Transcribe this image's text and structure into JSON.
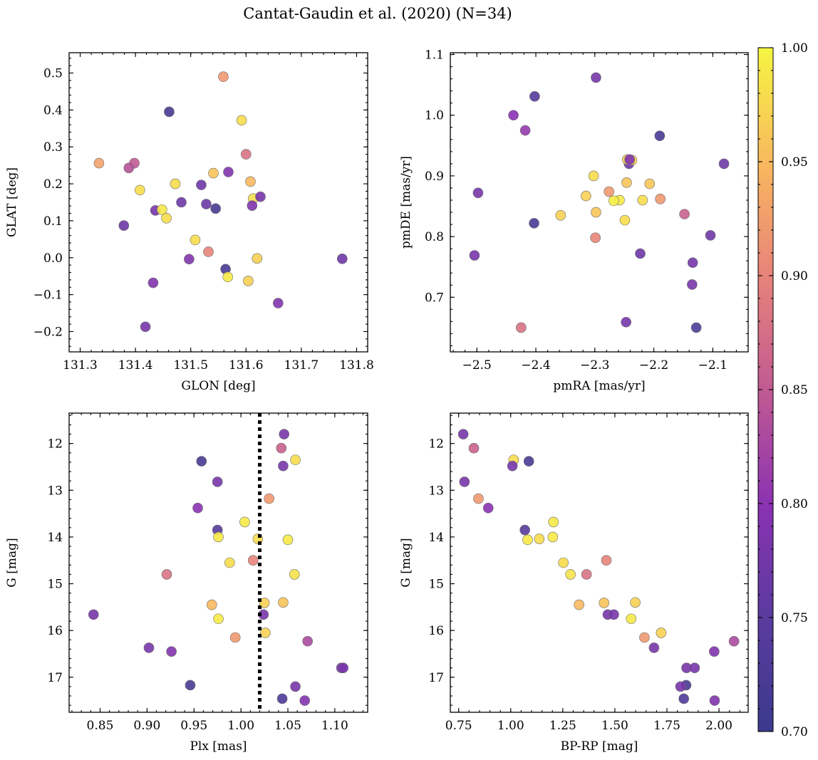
{
  "title": "Cantat-Gaudin et al. (2020) (N=34)",
  "colorbar": {
    "min": 0.7,
    "max": 1.0,
    "ticks": [
      "0.70",
      "0.75",
      "0.80",
      "0.85",
      "0.90",
      "0.95",
      "1.00"
    ],
    "colormap": "plasma"
  },
  "chart_data": [
    {
      "type": "scatter",
      "xlabel": "GLON [deg]",
      "ylabel": "GLAT [deg]",
      "xlim": [
        131.28,
        131.82
      ],
      "ylim": [
        -0.255,
        0.555
      ],
      "xticks": [
        "131.3",
        "131.4",
        "131.5",
        "131.6",
        "131.7",
        "131.8"
      ],
      "yticks": [
        "−0.2",
        "−0.1",
        "0.0",
        "0.1",
        "0.2",
        "0.3",
        "0.4",
        "0.5"
      ],
      "x": [
        131.559,
        131.461,
        131.592,
        131.6,
        131.334,
        131.398,
        131.388,
        131.568,
        131.541,
        131.608,
        131.472,
        131.408,
        131.519,
        131.613,
        131.626,
        131.483,
        131.528,
        131.436,
        131.448,
        131.545,
        131.379,
        131.456,
        131.508,
        131.532,
        131.497,
        131.62,
        131.774,
        131.563,
        131.567,
        131.604,
        131.432,
        131.658,
        131.418,
        131.611
      ],
      "y": [
        0.49,
        0.395,
        0.372,
        0.28,
        0.256,
        0.256,
        0.243,
        0.232,
        0.229,
        0.206,
        0.2,
        0.183,
        0.197,
        0.16,
        0.165,
        0.15,
        0.145,
        0.128,
        0.13,
        0.133,
        0.087,
        0.107,
        0.048,
        0.016,
        -0.004,
        -0.002,
        -0.003,
        -0.031,
        -0.052,
        -0.063,
        -0.068,
        -0.123,
        -0.187,
        0.141
      ],
      "c": [
        0.92,
        0.72,
        0.98,
        0.88,
        0.93,
        0.85,
        0.84,
        0.79,
        0.96,
        0.95,
        0.98,
        0.98,
        0.77,
        0.98,
        0.78,
        0.77,
        0.77,
        0.78,
        0.99,
        0.72,
        0.77,
        0.98,
        0.98,
        0.9,
        0.79,
        0.97,
        0.77,
        0.72,
        0.99,
        0.97,
        0.79,
        0.79,
        0.78,
        0.79
      ]
    },
    {
      "type": "scatter",
      "xlabel": "pmRA [mas/yr]",
      "ylabel": "pmDE [mas/yr]",
      "xlim": [
        -2.545,
        -2.04
      ],
      "ylim": [
        0.61,
        1.103
      ],
      "xticks": [
        "−2.5",
        "−2.4",
        "−2.3",
        "−2.2",
        "−2.1"
      ],
      "yticks": [
        "0.7",
        "0.8",
        "0.9",
        "1.0",
        "1.1"
      ],
      "x": [
        -2.298,
        -2.402,
        -2.438,
        -2.418,
        -2.19,
        -2.081,
        -2.498,
        -2.242,
        -2.245,
        -2.237,
        -2.302,
        -2.207,
        -2.276,
        -2.246,
        -2.315,
        -2.219,
        -2.258,
        -2.189,
        -2.268,
        -2.298,
        -2.358,
        -2.148,
        -2.249,
        -2.403,
        -2.104,
        -2.299,
        -2.223,
        -2.504,
        -2.134,
        -2.135,
        -2.247,
        -2.425,
        -2.128,
        -2.241
      ],
      "y": [
        1.062,
        1.031,
        1.0,
        0.975,
        0.966,
        0.92,
        0.872,
        0.92,
        0.927,
        0.926,
        0.9,
        0.887,
        0.874,
        0.889,
        0.867,
        0.86,
        0.86,
        0.862,
        0.859,
        0.84,
        0.835,
        0.837,
        0.827,
        0.822,
        0.802,
        0.798,
        0.772,
        0.769,
        0.757,
        0.721,
        0.659,
        0.65,
        0.65,
        0.927
      ],
      "c": [
        0.78,
        0.74,
        0.8,
        0.81,
        0.72,
        0.77,
        0.78,
        0.77,
        0.97,
        0.97,
        0.98,
        0.96,
        0.92,
        0.96,
        0.97,
        0.98,
        0.99,
        0.92,
        0.995,
        0.96,
        0.97,
        0.86,
        0.98,
        0.72,
        0.77,
        0.9,
        0.77,
        0.78,
        0.78,
        0.78,
        0.78,
        0.88,
        0.73,
        0.79
      ]
    },
    {
      "type": "scatter",
      "xlabel": "Plx [mas]",
      "ylabel": "G [mag]",
      "xlim": [
        0.817,
        1.135
      ],
      "ylim": [
        17.75,
        11.35
      ],
      "ylim_inverted": true,
      "vline": 1.02,
      "xticks": [
        "0.85",
        "0.90",
        "0.95",
        "1.00",
        "1.05",
        "1.10"
      ],
      "yticks": [
        "12",
        "13",
        "14",
        "15",
        "16",
        "17"
      ],
      "x": [
        1.046,
        1.043,
        1.058,
        0.958,
        1.045,
        0.975,
        1.03,
        0.954,
        1.004,
        0.975,
        0.976,
        1.018,
        1.05,
        1.013,
        0.988,
        0.921,
        1.057,
        1.025,
        1.045,
        0.969,
        1.024,
        0.976,
        1.026,
        0.843,
        0.994,
        1.071,
        0.902,
        0.926,
        1.107,
        1.109,
        0.946,
        1.058,
        1.044,
        1.068
      ],
      "y": [
        11.8,
        12.1,
        12.35,
        12.38,
        12.48,
        12.82,
        13.18,
        13.38,
        13.68,
        13.85,
        14.0,
        14.04,
        14.06,
        14.5,
        14.55,
        14.8,
        14.8,
        15.41,
        15.4,
        15.45,
        15.66,
        15.75,
        16.05,
        15.66,
        16.15,
        16.23,
        16.37,
        16.45,
        16.8,
        16.8,
        17.17,
        17.2,
        17.46,
        17.5
      ],
      "c": [
        0.78,
        0.86,
        0.98,
        0.72,
        0.78,
        0.78,
        0.92,
        0.8,
        0.99,
        0.74,
        0.99,
        0.98,
        0.99,
        0.9,
        0.98,
        0.88,
        0.985,
        0.97,
        0.96,
        0.95,
        0.78,
        0.99,
        0.97,
        0.78,
        0.92,
        0.83,
        0.78,
        0.79,
        0.78,
        0.78,
        0.72,
        0.78,
        0.73,
        0.79
      ]
    },
    {
      "type": "scatter",
      "xlabel": "BP-RP [mag]",
      "ylabel": "G [mag]",
      "xlim": [
        0.71,
        2.14
      ],
      "ylim": [
        17.75,
        11.35
      ],
      "ylim_inverted": true,
      "xticks": [
        "0.75",
        "1.00",
        "1.25",
        "1.50",
        "1.75",
        "2.00"
      ],
      "yticks": [
        "12",
        "13",
        "14",
        "15",
        "16",
        "17"
      ],
      "x": [
        0.772,
        0.823,
        1.014,
        1.008,
        1.087,
        0.778,
        0.845,
        0.892,
        1.205,
        1.068,
        1.202,
        1.081,
        1.137,
        1.459,
        1.253,
        1.364,
        1.287,
        1.448,
        1.598,
        1.328,
        1.466,
        1.578,
        1.722,
        1.495,
        1.642,
        2.072,
        1.688,
        1.977,
        1.844,
        1.883,
        1.842,
        1.815,
        1.831,
        1.979
      ],
      "y": [
        11.8,
        12.1,
        12.35,
        12.48,
        12.38,
        12.82,
        13.18,
        13.38,
        13.68,
        13.85,
        14.0,
        14.06,
        14.04,
        14.5,
        14.55,
        14.8,
        14.8,
        15.41,
        15.4,
        15.45,
        15.66,
        15.75,
        16.05,
        15.66,
        16.15,
        16.23,
        16.37,
        16.45,
        16.8,
        16.8,
        17.17,
        17.2,
        17.46,
        17.5
      ],
      "c": [
        0.78,
        0.86,
        0.98,
        0.78,
        0.72,
        0.78,
        0.92,
        0.8,
        0.99,
        0.74,
        0.99,
        0.99,
        0.98,
        0.9,
        0.98,
        0.88,
        0.985,
        0.96,
        0.97,
        0.95,
        0.78,
        0.99,
        0.97,
        0.78,
        0.92,
        0.83,
        0.78,
        0.79,
        0.78,
        0.78,
        0.72,
        0.78,
        0.73,
        0.79
      ]
    }
  ]
}
